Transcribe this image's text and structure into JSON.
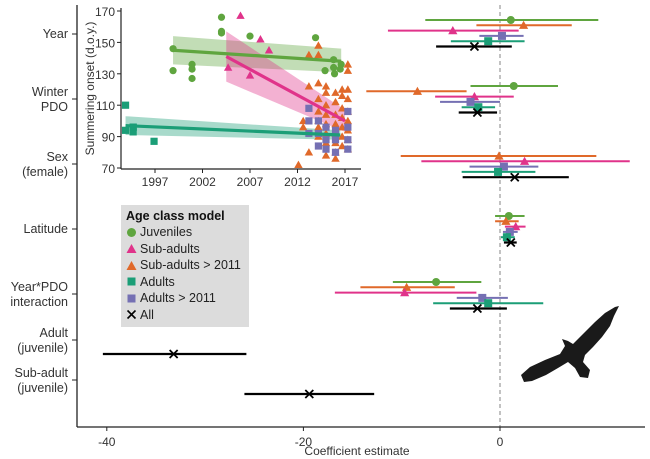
{
  "chart_data": [
    {
      "type": "forest",
      "title": "",
      "xlabel": "Coefficient estimate",
      "xlim": [
        -41,
        15
      ],
      "xticks": [
        -40,
        -20,
        0
      ],
      "reference_line": 0,
      "legend": {
        "title": "Age class model",
        "placement": "left-middle",
        "entries": [
          {
            "key": "juveniles",
            "label": "Juveniles",
            "shape": "circle",
            "color": "#5fa53f"
          },
          {
            "key": "subadults",
            "label": "Sub-adults",
            "shape": "triangle",
            "color": "#e0338a"
          },
          {
            "key": "subadults2011",
            "label": "Sub-adults > 2011",
            "shape": "triangle",
            "color": "#e0692a"
          },
          {
            "key": "adults",
            "label": "Adults",
            "shape": "square",
            "color": "#1b9e77"
          },
          {
            "key": "adults2011",
            "label": "Adults > 2011",
            "shape": "square",
            "color": "#7570b3"
          },
          {
            "key": "all",
            "label": "All",
            "shape": "x",
            "color": "#000000"
          }
        ]
      },
      "rows": [
        {
          "label": [
            "Year"
          ],
          "estimates": [
            {
              "model": "juveniles",
              "est": 1.1,
              "lo": -7.6,
              "hi": 10.0
            },
            {
              "model": "subadults2011",
              "est": 2.4,
              "lo": -2.4,
              "hi": 7.3
            },
            {
              "model": "subadults",
              "est": -4.8,
              "lo": -11.4,
              "hi": 1.9
            },
            {
              "model": "adults2011",
              "est": 0.2,
              "lo": -2.1,
              "hi": 2.4
            },
            {
              "model": "adults",
              "est": -1.2,
              "lo": -5.0,
              "hi": 2.5
            },
            {
              "model": "all",
              "est": -2.6,
              "lo": -6.5,
              "hi": 1.2
            }
          ]
        },
        {
          "label": [
            "Winter",
            "PDO"
          ],
          "estimates": [
            {
              "model": "juveniles",
              "est": 1.4,
              "lo": -3.0,
              "hi": 5.9
            },
            {
              "model": "subadults2011",
              "est": -8.4,
              "lo": -13.6,
              "hi": -3.4
            },
            {
              "model": "subadults",
              "est": -2.6,
              "lo": -6.6,
              "hi": 1.4
            },
            {
              "model": "adults2011",
              "est": -3.0,
              "lo": -6.1,
              "hi": 0.0
            },
            {
              "model": "adults",
              "est": -2.2,
              "lo": -3.9,
              "hi": -0.5
            },
            {
              "model": "all",
              "est": -2.3,
              "lo": -4.2,
              "hi": -0.3
            }
          ]
        },
        {
          "label": [
            "Sex",
            "(female)"
          ],
          "estimates": [
            {
              "model": "subadults2011",
              "est": -0.1,
              "lo": -10.1,
              "hi": 9.8
            },
            {
              "model": "subadults",
              "est": 2.5,
              "lo": -8.0,
              "hi": 13.2
            },
            {
              "model": "adults2011",
              "est": 0.4,
              "lo": -3.1,
              "hi": 3.9
            },
            {
              "model": "adults",
              "est": -0.2,
              "lo": -3.9,
              "hi": 3.6
            },
            {
              "model": "all",
              "est": 1.5,
              "lo": -3.8,
              "hi": 7.0
            }
          ]
        },
        {
          "label": [
            "Latitude"
          ],
          "estimates": [
            {
              "model": "juveniles",
              "est": 0.9,
              "lo": -0.5,
              "hi": 2.5
            },
            {
              "model": "subadults2011",
              "est": 0.6,
              "lo": -0.5,
              "hi": 1.9
            },
            {
              "model": "subadults",
              "est": 1.6,
              "lo": 0.5,
              "hi": 2.6
            },
            {
              "model": "adults2011",
              "est": 1.0,
              "lo": 0.3,
              "hi": 1.8
            },
            {
              "model": "adults",
              "est": 0.7,
              "lo": 0.1,
              "hi": 1.5
            },
            {
              "model": "all",
              "est": 1.1,
              "lo": 0.4,
              "hi": 1.7
            }
          ]
        },
        {
          "label": [
            "Year*PDO",
            "interaction"
          ],
          "estimates": [
            {
              "model": "juveniles",
              "est": -6.5,
              "lo": -10.9,
              "hi": -1.9
            },
            {
              "model": "subadults2011",
              "est": -9.5,
              "lo": -14.2,
              "hi": -4.6
            },
            {
              "model": "subadults",
              "est": -9.7,
              "lo": -16.8,
              "hi": -2.4
            },
            {
              "model": "adults2011",
              "est": -1.8,
              "lo": -4.4,
              "hi": 0.8
            },
            {
              "model": "adults",
              "est": -1.2,
              "lo": -6.8,
              "hi": 4.4
            },
            {
              "model": "all",
              "est": -2.3,
              "lo": -5.1,
              "hi": 0.7
            }
          ]
        },
        {
          "label": [
            "Adult",
            "(juvenile)"
          ],
          "estimates": [
            {
              "model": "all",
              "est": -33.2,
              "lo": -40.4,
              "hi": -25.8
            }
          ]
        },
        {
          "label": [
            "Sub-adult",
            "(juvenile)"
          ],
          "estimates": [
            {
              "model": "all",
              "est": -19.4,
              "lo": -26.0,
              "hi": -12.8
            }
          ]
        }
      ]
    },
    {
      "type": "scatter",
      "title": "",
      "xlabel": "",
      "ylabel": "Summering onset (d.o.y.)",
      "xlim": [
        1992.6,
        2018.5
      ],
      "ylim": [
        70,
        170
      ],
      "xticks": [
        1997,
        2002,
        2007,
        2012,
        2017
      ],
      "yticks": [
        70,
        90,
        110,
        130,
        150,
        170
      ],
      "series": [
        {
          "model": "juveniles",
          "shape": "circle",
          "color": "#5fa53f",
          "points": [
            [
              1998.9,
              146
            ],
            [
              1998.9,
              132
            ],
            [
              2000.9,
              136
            ],
            [
              2000.9,
              133
            ],
            [
              2000.9,
              127
            ],
            [
              2004.0,
              166
            ],
            [
              2004.0,
              156
            ],
            [
              2004.0,
              157
            ],
            [
              2007.0,
              154
            ],
            [
              2013.9,
              153
            ],
            [
              2014.9,
              132
            ],
            [
              2015.8,
              139
            ],
            [
              2015.8,
              134
            ],
            [
              2015.9,
              130
            ],
            [
              2016.6,
              136
            ],
            [
              2016.5,
              133
            ]
          ],
          "fit": {
            "x": [
              1998.9,
              2016.6
            ],
            "y": [
              145,
              138
            ],
            "ci_lo": [
              136,
              131
            ],
            "ci_hi": [
              154,
              146
            ]
          }
        },
        {
          "model": "subadults",
          "shape": "triangle",
          "color": "#e0338a",
          "points": [
            [
              2006.0,
              167
            ],
            [
              2004.7,
              134
            ],
            [
              2007.0,
              129
            ],
            [
              2008.1,
              152
            ],
            [
              2009.0,
              145
            ]
          ],
          "fit": {
            "x": [
              2004.5,
              2017.0
            ],
            "y": [
              141,
              100
            ],
            "ci_lo": [
              125,
              93
            ],
            "ci_hi": [
              157,
              107
            ]
          }
        },
        {
          "model": "subadults2011",
          "shape": "triangle",
          "color": "#e0692a",
          "points": [
            [
              2012.1,
              72
            ],
            [
              2013.2,
              80
            ],
            [
              2012.6,
              100
            ],
            [
              2012.6,
              96
            ],
            [
              2013.2,
              122
            ],
            [
              2013.2,
              142
            ],
            [
              2014.2,
              148
            ],
            [
              2014.2,
              142
            ],
            [
              2014.2,
              124
            ],
            [
              2014.2,
              114
            ],
            [
              2014.2,
              106
            ],
            [
              2014.2,
              100
            ],
            [
              2014.2,
              96
            ],
            [
              2014.2,
              90
            ],
            [
              2015.0,
              122
            ],
            [
              2015.0,
              118
            ],
            [
              2015.0,
              110
            ],
            [
              2015.0,
              104
            ],
            [
              2015.0,
              98
            ],
            [
              2015.0,
              92
            ],
            [
              2015.0,
              86
            ],
            [
              2015.0,
              78
            ],
            [
              2016.0,
              118
            ],
            [
              2016.0,
              112
            ],
            [
              2016.0,
              104
            ],
            [
              2016.0,
              98
            ],
            [
              2016.0,
              92
            ],
            [
              2016.0,
              86
            ],
            [
              2016.0,
              80
            ],
            [
              2016.0,
              76
            ],
            [
              2016.7,
              120
            ],
            [
              2016.7,
              116
            ],
            [
              2016.7,
              108
            ],
            [
              2016.7,
              102
            ],
            [
              2016.7,
              96
            ],
            [
              2016.7,
              90
            ],
            [
              2016.7,
              84
            ],
            [
              2017.3,
              136
            ],
            [
              2017.3,
              132
            ],
            [
              2017.3,
              120
            ],
            [
              2017.3,
              114
            ],
            [
              2017.3,
              106
            ],
            [
              2017.3,
              100
            ],
            [
              2017.3,
              94
            ],
            [
              2017.3,
              88
            ],
            [
              2017.3,
              82
            ]
          ]
        },
        {
          "model": "adults",
          "shape": "square",
          "color": "#1b9e77",
          "points": [
            [
              1993.9,
              110
            ],
            [
              1993.9,
              94
            ],
            [
              1994.7,
              96
            ],
            [
              1994.7,
              93
            ],
            [
              1994.7,
              96
            ],
            [
              1996.9,
              87
            ]
          ],
          "fit": {
            "x": [
              1993.9,
              2016.5
            ],
            "y": [
              97,
              91
            ],
            "ci_lo": [
              91,
              88
            ],
            "ci_hi": [
              103,
              94
            ]
          }
        },
        {
          "model": "adults2011",
          "shape": "square",
          "color": "#7570b3",
          "points": [
            [
              2013.2,
              108
            ],
            [
              2013.2,
              100
            ],
            [
              2013.2,
              92
            ],
            [
              2014.2,
              100
            ],
            [
              2014.2,
              92
            ],
            [
              2014.2,
              84
            ],
            [
              2015.0,
              96
            ],
            [
              2015.0,
              88
            ],
            [
              2015.0,
              82
            ],
            [
              2016.0,
              94
            ],
            [
              2016.0,
              88
            ],
            [
              2016.0,
              80
            ],
            [
              2017.3,
              106
            ],
            [
              2017.3,
              96
            ],
            [
              2017.3,
              88
            ],
            [
              2017.3,
              82
            ]
          ]
        }
      ]
    }
  ]
}
